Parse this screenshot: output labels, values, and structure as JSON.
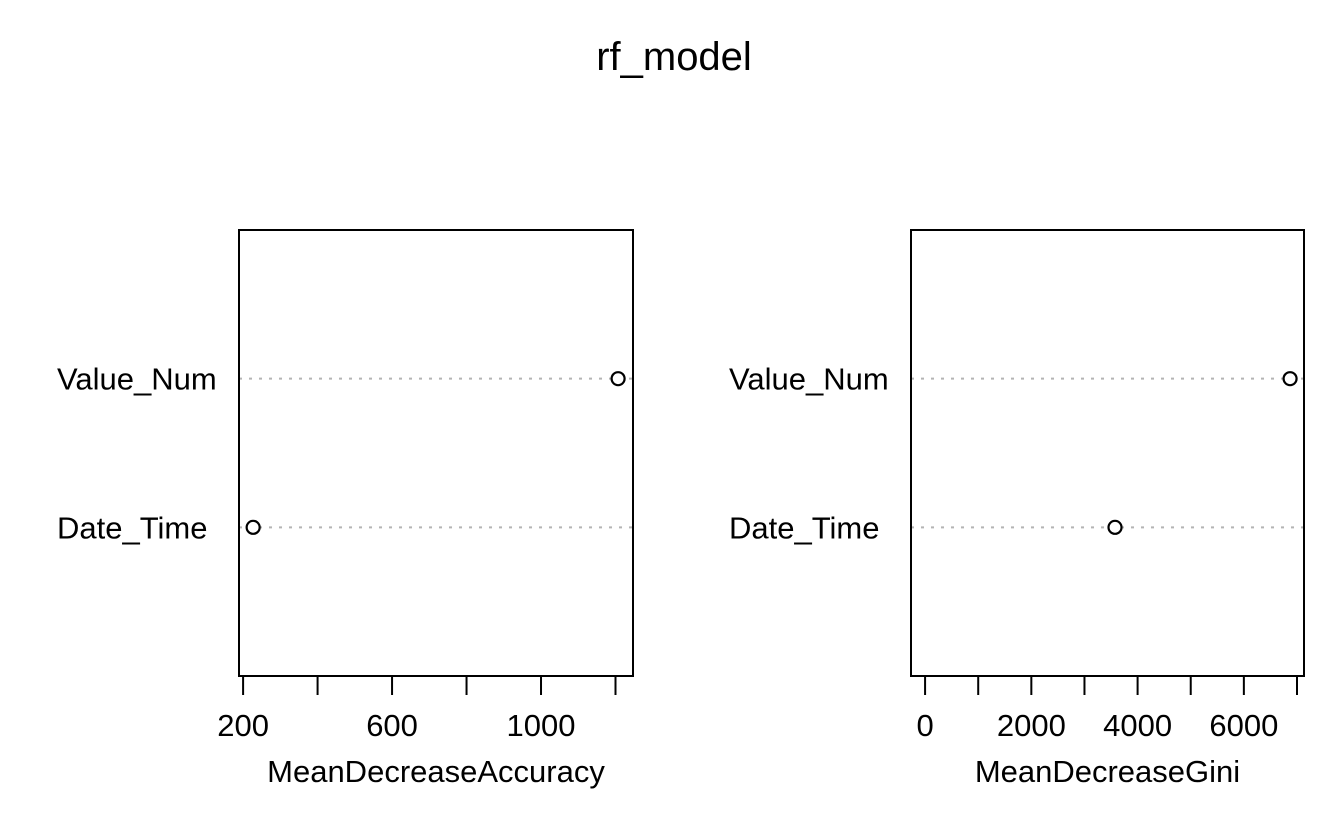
{
  "chart_data": {
    "type": "scatter",
    "subtype": "dotchart-variable-importance",
    "title": "rf_model",
    "background": "#ffffff",
    "colors": {
      "axis": "#000000",
      "text": "#000000",
      "gridline": "#b4b4b4",
      "point_stroke": "#000000",
      "point_fill": "#ffffff"
    },
    "grid": "dotted-horizontal-per-category",
    "legend": "none",
    "panels": [
      {
        "xlabel": "MeanDecreaseAccuracy",
        "categories": [
          "Value_Num",
          "Date_Time"
        ],
        "values": [
          1207,
          227
        ],
        "xlim": [
          189,
          1247
        ],
        "ticks": [
          200,
          400,
          600,
          800,
          1000,
          1200
        ],
        "tick_labels": [
          "200",
          "",
          "600",
          "",
          "1000",
          ""
        ]
      },
      {
        "xlabel": "MeanDecreaseGini",
        "categories": [
          "Value_Num",
          "Date_Time"
        ],
        "values": [
          6870,
          3575
        ],
        "xlim": [
          -265,
          7132
        ],
        "ticks": [
          0,
          1000,
          2000,
          3000,
          4000,
          5000,
          6000,
          7000
        ],
        "tick_labels": [
          "0",
          "",
          "2000",
          "",
          "4000",
          "",
          "6000",
          ""
        ]
      }
    ]
  }
}
